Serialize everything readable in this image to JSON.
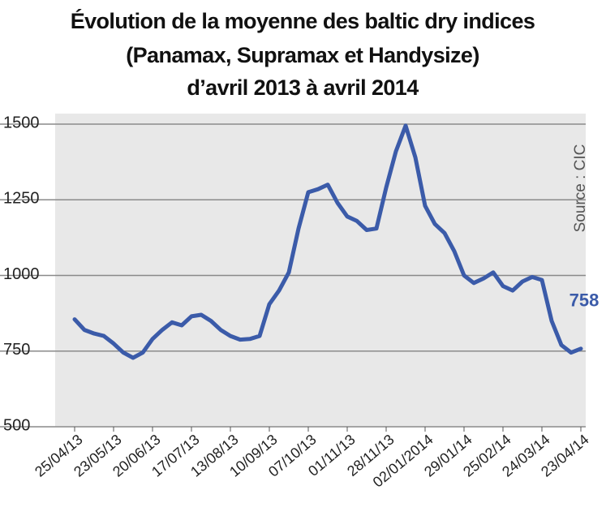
{
  "chart_data": {
    "type": "line",
    "title": [
      "Évolution de la moyenne des baltic dry indices",
      "(Panamax, Supramax et Handysize)",
      "d’avril 2013 à avril 2014"
    ],
    "source": "Source : CIC",
    "categories": [
      "25/04/13",
      null,
      null,
      null,
      "23/05/13",
      null,
      null,
      null,
      "20/06/13",
      null,
      null,
      null,
      "17/07/13",
      null,
      null,
      null,
      "13/08/13",
      null,
      null,
      null,
      "10/09/13",
      null,
      null,
      null,
      "07/10/13",
      null,
      null,
      null,
      "01/11/13",
      null,
      null,
      null,
      "28/11/13",
      null,
      null,
      null,
      "02/01/2014",
      null,
      null,
      null,
      "29/01/14",
      null,
      null,
      null,
      "25/02/14",
      null,
      null,
      null,
      "24/03/14",
      null,
      null,
      null,
      "23/04/14"
    ],
    "series": [
      {
        "name": "Baltic dry indices",
        "color": "#3b5ba9",
        "values": [
          855,
          820,
          808,
          800,
          775,
          745,
          728,
          745,
          790,
          820,
          845,
          835,
          865,
          870,
          850,
          820,
          800,
          788,
          790,
          800,
          905,
          950,
          1010,
          1155,
          1275,
          1285,
          1300,
          1240,
          1195,
          1180,
          1150,
          1155,
          1290,
          1410,
          1495,
          1390,
          1230,
          1170,
          1140,
          1080,
          1000,
          975,
          990,
          1010,
          965,
          950,
          980,
          995,
          985,
          850,
          770,
          745,
          758
        ]
      }
    ],
    "ylim": [
      500,
      1500
    ],
    "yticks": [
      500,
      750,
      1000,
      1250,
      1500
    ],
    "grid": true
  }
}
